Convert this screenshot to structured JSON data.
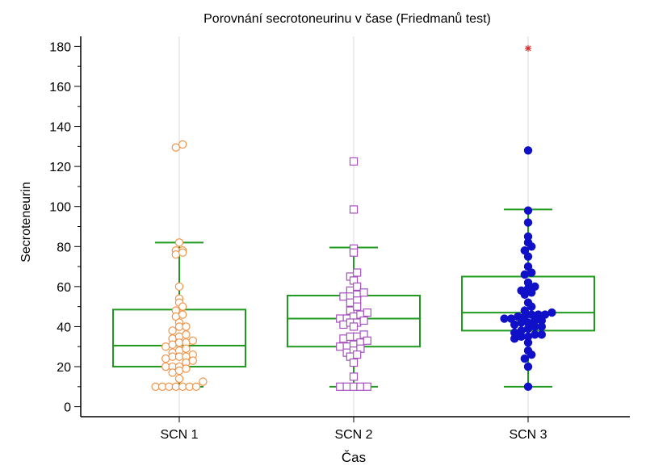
{
  "chart_data": {
    "type": "box",
    "title": "Porovnání secrotoneurinu v čase (Friedmanů test)",
    "xlabel": "Čas",
    "ylabel": "Secroteneurin",
    "ylim": [
      -5,
      185
    ],
    "yticks": [
      0,
      20,
      40,
      60,
      80,
      100,
      120,
      140,
      160,
      180
    ],
    "grid": "vertical",
    "categories": [
      "SCN 1",
      "SCN 2",
      "SCN 3"
    ],
    "colors": {
      "box": "#1f9a1f",
      "grid": "#d9d9d9",
      "axis": "#000000",
      "outlier": "#d62728"
    },
    "series": [
      {
        "boxplot": {
          "whisker_low": 10,
          "q1": 20,
          "median": 30.5,
          "q3": 48.5,
          "whisker_high": 82
        },
        "outliers": [],
        "marker": {
          "shape": "circle",
          "filled": false,
          "color": "#f0944a"
        },
        "points": [
          10,
          10,
          10,
          10,
          10,
          10,
          10,
          12.5,
          14,
          17,
          18,
          19,
          20,
          20,
          20,
          22,
          23,
          24,
          25,
          25,
          25,
          26,
          27,
          28,
          29,
          30,
          31,
          32,
          32,
          33,
          34,
          35,
          36,
          38,
          40,
          40,
          42,
          45,
          46,
          48,
          50,
          52,
          54,
          60,
          76,
          77,
          78,
          78,
          82,
          129.5,
          131
        ]
      },
      {
        "boxplot": {
          "whisker_low": 10,
          "q1": 30,
          "median": 44,
          "q3": 55.5,
          "whisker_high": 79.5
        },
        "outliers": [],
        "marker": {
          "shape": "square",
          "filled": false,
          "color": "#a64fbf"
        },
        "points": [
          10,
          10,
          10,
          10,
          10,
          15,
          22,
          25,
          26,
          27,
          28,
          29,
          30,
          30,
          31,
          32,
          33,
          34,
          35,
          35,
          36,
          40,
          41,
          42,
          42,
          43,
          44,
          44,
          45,
          46,
          47,
          48,
          50,
          52,
          53,
          55,
          55,
          56,
          57,
          58,
          60,
          63,
          65,
          67,
          77,
          79,
          98.5,
          122.5
        ]
      },
      {
        "boxplot": {
          "whisker_low": 10,
          "q1": 38,
          "median": 47,
          "q3": 65,
          "whisker_high": 98.5
        },
        "outliers": [
          179
        ],
        "marker": {
          "shape": "circle",
          "filled": true,
          "color": "#1010c8"
        },
        "points": [
          10,
          20,
          24,
          26,
          28,
          32,
          34,
          35,
          35,
          36,
          36,
          37,
          38,
          39,
          40,
          40,
          41,
          42,
          42,
          43,
          43,
          44,
          44,
          45,
          45,
          46,
          46,
          46,
          47,
          48,
          50,
          52,
          56,
          57,
          58,
          59,
          60,
          62,
          66,
          67,
          70,
          75,
          78,
          80,
          82,
          85,
          92,
          98,
          128
        ]
      }
    ]
  }
}
